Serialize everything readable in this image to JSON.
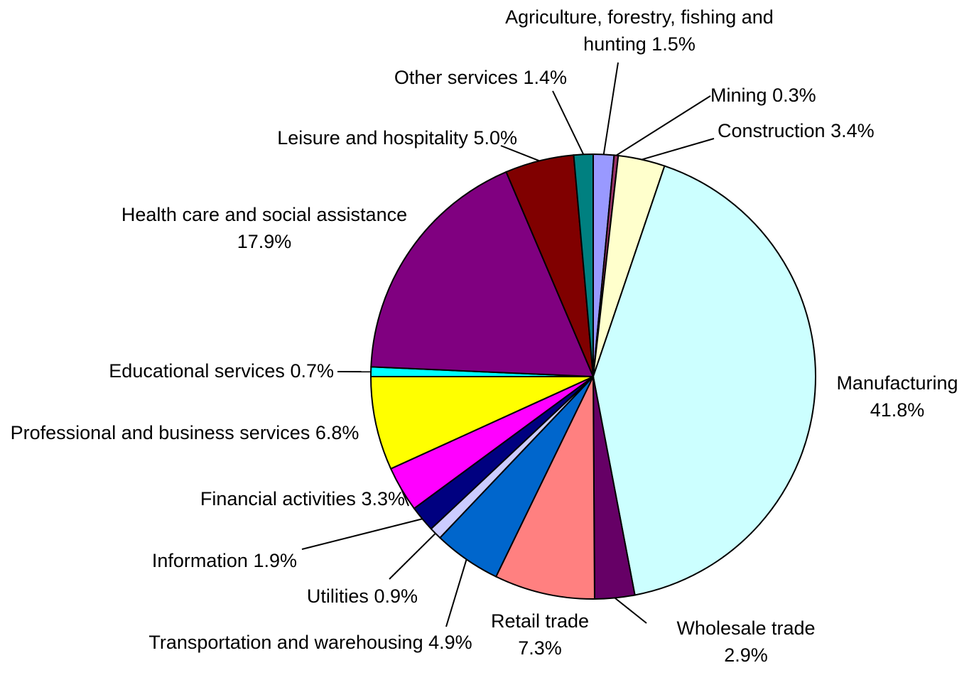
{
  "chart_data": {
    "type": "pie",
    "categories": [
      "Agriculture, forestry, fishing and hunting",
      "Mining",
      "Construction",
      "Manufacturing",
      "Wholesale trade",
      "Retail trade",
      "Transportation and warehousing",
      "Utilities",
      "Information",
      "Financial activities",
      "Professional and business services",
      "Educational services",
      "Health care and social assistance",
      "Leisure and hospitality",
      "Other services"
    ],
    "values": [
      1.5,
      0.3,
      3.4,
      41.8,
      2.9,
      7.3,
      4.9,
      0.9,
      1.9,
      3.3,
      6.8,
      0.7,
      17.9,
      5.0,
      1.4
    ],
    "value_labels": [
      "1.5%",
      "0.3%",
      "3.4%",
      "41.8%",
      "2.9%",
      "7.3%",
      "4.9%",
      "0.9%",
      "1.9%",
      "3.3%",
      "6.8%",
      "0.7%",
      "17.9%",
      "5.0%",
      "1.4%"
    ],
    "colors": [
      "#9999ff",
      "#993366",
      "#ffffcc",
      "#ccffff",
      "#660066",
      "#ff8080",
      "#0066cc",
      "#ccccff",
      "#000080",
      "#ff00ff",
      "#ffff00",
      "#00ffff",
      "#800080",
      "#800000",
      "#008080"
    ]
  }
}
